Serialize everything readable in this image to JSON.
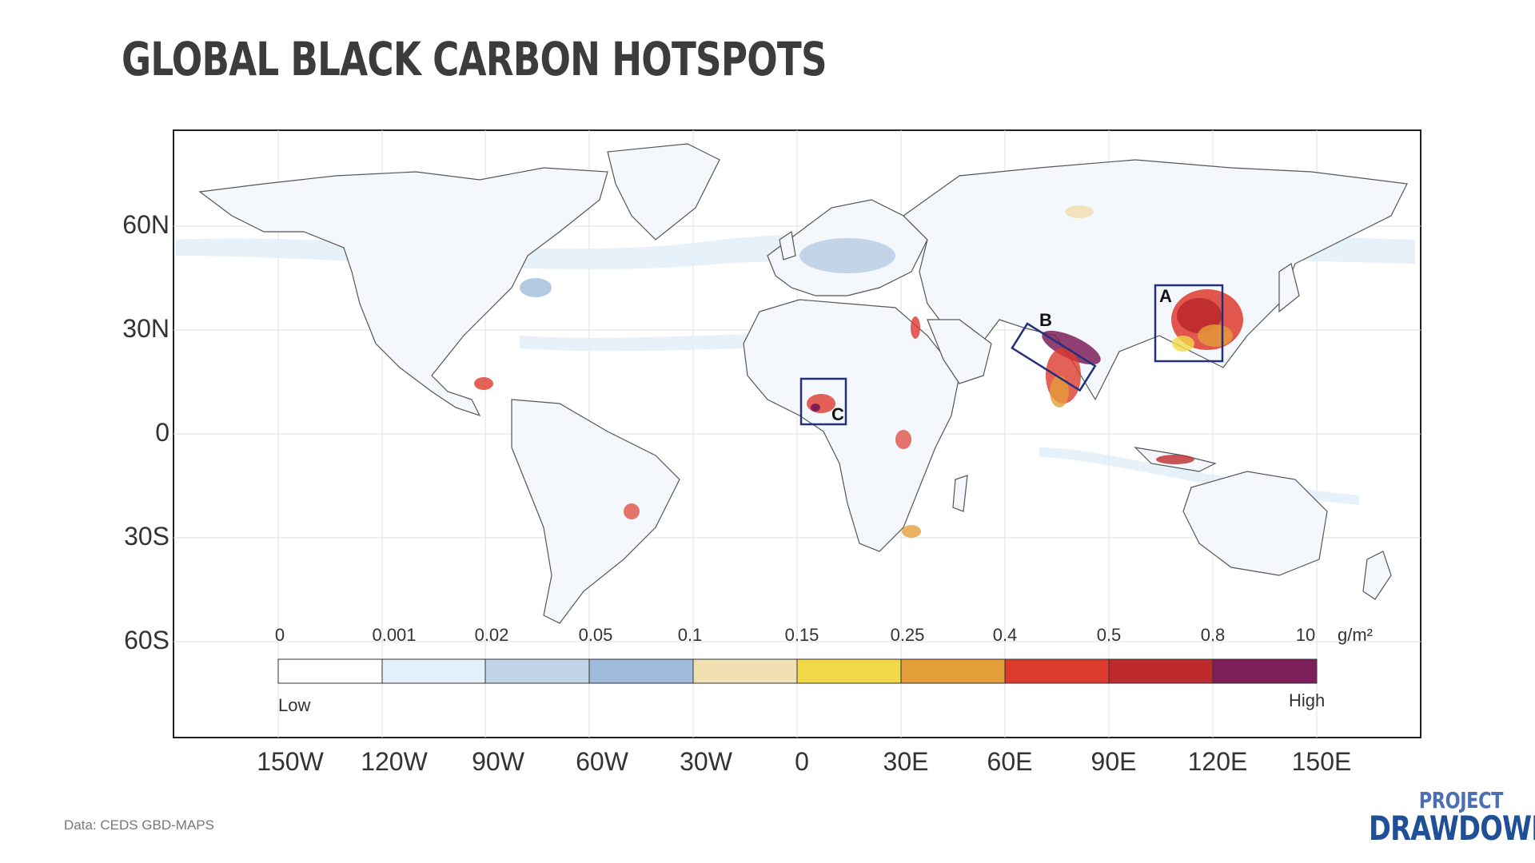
{
  "title": "GLOBAL BLACK CARBON HOTSPOTS",
  "map": {
    "latitude_labels": [
      "60N",
      "30N",
      "0",
      "30S",
      "60S"
    ],
    "longitude_labels": [
      "150W",
      "120W",
      "90W",
      "60W",
      "30W",
      "0",
      "30E",
      "60E",
      "90E",
      "120E",
      "150E"
    ],
    "regions": [
      {
        "letter": "A",
        "description_shown": "box over eastern China"
      },
      {
        "letter": "B",
        "description_shown": "box over northern India / Indo-Gangetic plain"
      },
      {
        "letter": "C",
        "description_shown": "box over Nigeria / Gulf of Guinea"
      }
    ],
    "box_color": "#24307a"
  },
  "legend": {
    "ticks": [
      "0",
      "0.001",
      "0.02",
      "0.05",
      "0.1",
      "0.15",
      "0.25",
      "0.4",
      "0.5",
      "0.8",
      "10"
    ],
    "unit": "g/m²",
    "low_label": "Low",
    "high_label": "High",
    "colors": [
      "#ffffff",
      "#e3effa",
      "#c2d5e8",
      "#a1bcdb",
      "#f2e0b5",
      "#f2d94a",
      "#e39e3a",
      "#dd3a2e",
      "#bd2a2e",
      "#7e1e5a"
    ]
  },
  "source": "Data: CEDS GBD-MAPS",
  "logo": {
    "line1": "PROJECT",
    "line2": "DRAWDOWN"
  }
}
